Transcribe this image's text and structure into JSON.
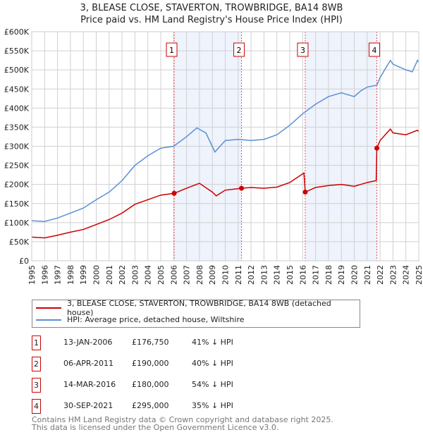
{
  "title": "3, BLEASE CLOSE, STAVERTON, TROWBRIDGE, BA14 8WB",
  "subtitle": "Price paid vs. HM Land Registry's House Price Index (HPI)",
  "colors": {
    "property": "#cc0000",
    "hpi": "#5b8fd6",
    "shade": "#eef3fc"
  },
  "chart_data": {
    "type": "line",
    "xlim": [
      1995,
      2025
    ],
    "ylim": [
      0,
      600000
    ],
    "xticks": [
      "1995",
      "1996",
      "1997",
      "1998",
      "1999",
      "2000",
      "2001",
      "2002",
      "2003",
      "2004",
      "2005",
      "2006",
      "2007",
      "2008",
      "2009",
      "2010",
      "2011",
      "2012",
      "2013",
      "2014",
      "2015",
      "2016",
      "2017",
      "2018",
      "2019",
      "2020",
      "2021",
      "2022",
      "2023",
      "2024",
      "2025"
    ],
    "yticks": [
      "£0",
      "£50K",
      "£100K",
      "£150K",
      "£200K",
      "£250K",
      "£300K",
      "£350K",
      "£400K",
      "£450K",
      "£500K",
      "£550K",
      "£600K"
    ],
    "series": [
      {
        "name": "3, BLEASE CLOSE, STAVERTON, TROWBRIDGE, BA14 8WB (detached house)",
        "color": "#cc0000",
        "x": [
          1995,
          1996,
          1997,
          1998,
          1999,
          2000,
          2001,
          2002,
          2003,
          2004,
          2005,
          2006.04,
          2007,
          2008,
          2009,
          2009.3,
          2010,
          2011.26,
          2012,
          2013,
          2014,
          2015,
          2016.1,
          2016.2,
          2017,
          2018,
          2019,
          2020,
          2021,
          2021.7,
          2021.75,
          2022,
          2022.8,
          2023,
          2024,
          2024.9,
          2025
        ],
        "y": [
          62,
          60,
          67,
          75,
          82,
          95,
          108,
          125,
          148,
          160,
          172,
          176.75,
          190,
          203,
          180,
          170,
          185,
          190,
          192,
          190,
          193,
          205,
          230,
          180,
          192,
          197,
          200,
          195,
          205,
          210,
          295,
          315,
          345,
          335,
          330,
          342,
          338
        ]
      },
      {
        "name": "HPI: Average price, detached house, Wiltshire",
        "color": "#5b8fd6",
        "x": [
          1995,
          1996,
          1997,
          1998,
          1999,
          2000,
          2001,
          2002,
          2003,
          2004,
          2005,
          2006,
          2007,
          2007.8,
          2008.5,
          2009.2,
          2010,
          2011,
          2012,
          2013,
          2014,
          2015,
          2016,
          2017,
          2018,
          2019,
          2020,
          2020.5,
          2021,
          2021.75,
          2022,
          2022.8,
          2023,
          2024,
          2024.5,
          2024.9,
          2025
        ],
        "y": [
          105,
          103,
          112,
          125,
          138,
          160,
          180,
          210,
          250,
          275,
          295,
          300,
          325,
          348,
          335,
          285,
          315,
          318,
          315,
          318,
          330,
          355,
          385,
          410,
          430,
          440,
          430,
          445,
          455,
          460,
          480,
          525,
          515,
          500,
          495,
          525,
          520
        ]
      }
    ],
    "y_units": "thousands GBP",
    "sales": [
      {
        "label": "1",
        "date": "13-JAN-2006",
        "x": 2006.04,
        "price": "£176,750",
        "value": 176.75,
        "hpi": "41% ↓ HPI"
      },
      {
        "label": "2",
        "date": "06-APR-2011",
        "x": 2011.26,
        "price": "£190,000",
        "value": 190,
        "hpi": "40% ↓ HPI"
      },
      {
        "label": "3",
        "date": "14-MAR-2016",
        "x": 2016.2,
        "price": "£180,000",
        "value": 180,
        "hpi": "54% ↓ HPI"
      },
      {
        "label": "4",
        "date": "30-SEP-2021",
        "x": 2021.75,
        "price": "£295,000",
        "value": 295,
        "hpi": "35% ↓ HPI"
      }
    ]
  },
  "footer": [
    "Contains HM Land Registry data © Crown copyright and database right 2025.",
    "This data is licensed under the Open Government Licence v3.0."
  ]
}
